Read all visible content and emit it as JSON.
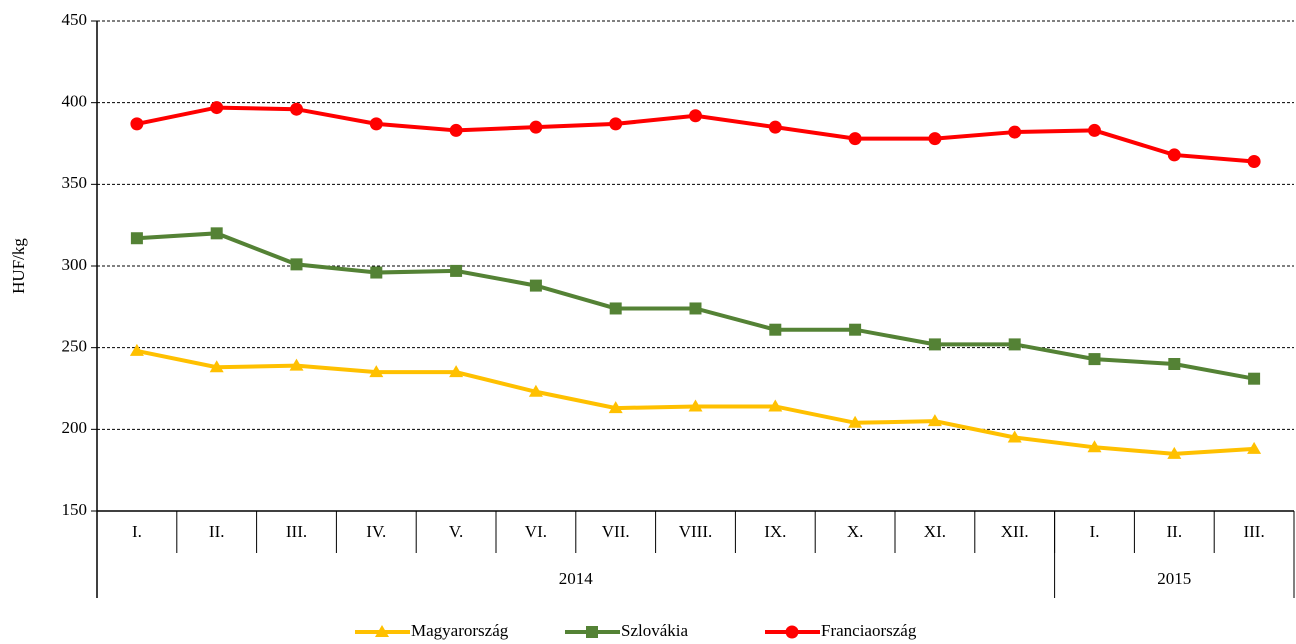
{
  "chart_data": {
    "type": "line",
    "y_label": "HUF/kg",
    "categories": [
      "I.",
      "II.",
      "III.",
      "IV.",
      "V.",
      "VI.",
      "VII.",
      "VIII.",
      "IX.",
      "X.",
      "XI.",
      "XII.",
      "I.",
      "II.",
      "III."
    ],
    "category_groups": [
      {
        "label": "2014",
        "size": 12
      },
      {
        "label": "2015",
        "size": 3
      }
    ],
    "series": [
      {
        "name": "Magyarország",
        "color": "#FFC000",
        "marker": "triangle",
        "values": [
          248,
          238,
          239,
          235,
          235,
          223,
          213,
          214,
          214,
          204,
          205,
          195,
          189,
          185,
          188
        ]
      },
      {
        "name": "Szlovákia",
        "color": "#548235",
        "marker": "square",
        "values": [
          317,
          320,
          301,
          296,
          297,
          288,
          274,
          274,
          261,
          261,
          252,
          252,
          243,
          240,
          231
        ]
      },
      {
        "name": "Franciaország",
        "color": "#FF0000",
        "marker": "circle",
        "values": [
          387,
          397,
          396,
          387,
          383,
          385,
          387,
          392,
          385,
          378,
          378,
          382,
          383,
          368,
          364
        ]
      }
    ],
    "ylim": [
      150,
      450
    ],
    "yticks": [
      150,
      200,
      250,
      300,
      350,
      400,
      450
    ],
    "grid": true,
    "legend": "bottom"
  }
}
